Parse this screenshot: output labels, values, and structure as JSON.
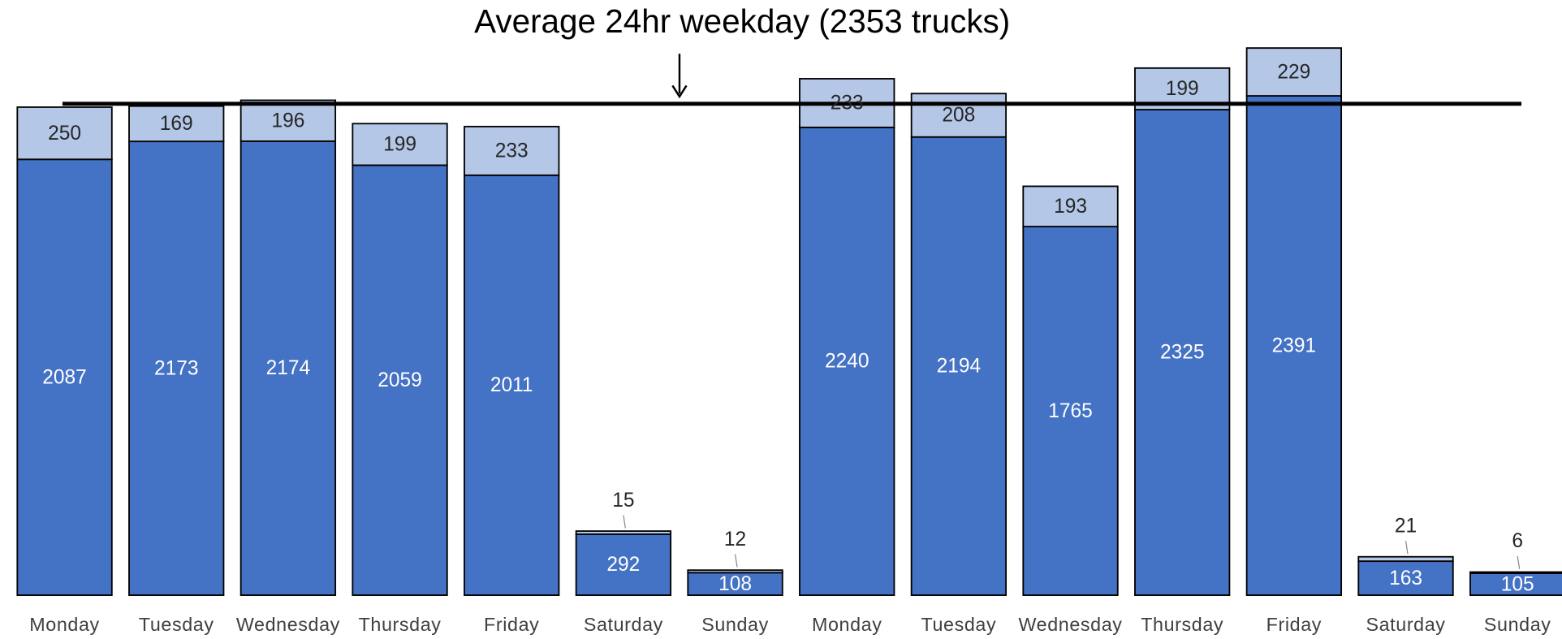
{
  "chart_data": {
    "type": "stacked_bar",
    "categories": [
      "Monday",
      "Tuesday",
      "Wednesday",
      "Thursday",
      "Friday",
      "Saturday",
      "Sunday",
      "Monday",
      "Tuesday",
      "Wednesday",
      "Thursday",
      "Friday",
      "Saturday",
      "Sunday"
    ],
    "series": [
      {
        "color": "#4472c4",
        "values": [
          2087,
          2173,
          2174,
          2059,
          2011,
          292,
          108,
          2240,
          2194,
          1765,
          2325,
          2391,
          163,
          105
        ]
      },
      {
        "color": "#b4c7e7",
        "values": [
          250,
          169,
          196,
          199,
          233,
          15,
          12,
          233,
          208,
          193,
          199,
          229,
          21,
          6
        ]
      }
    ],
    "ylim": [
      0,
      2850
    ],
    "reference_line": {
      "value": 2353,
      "label": "Average 24hr weekday (2353 trucks)"
    }
  }
}
